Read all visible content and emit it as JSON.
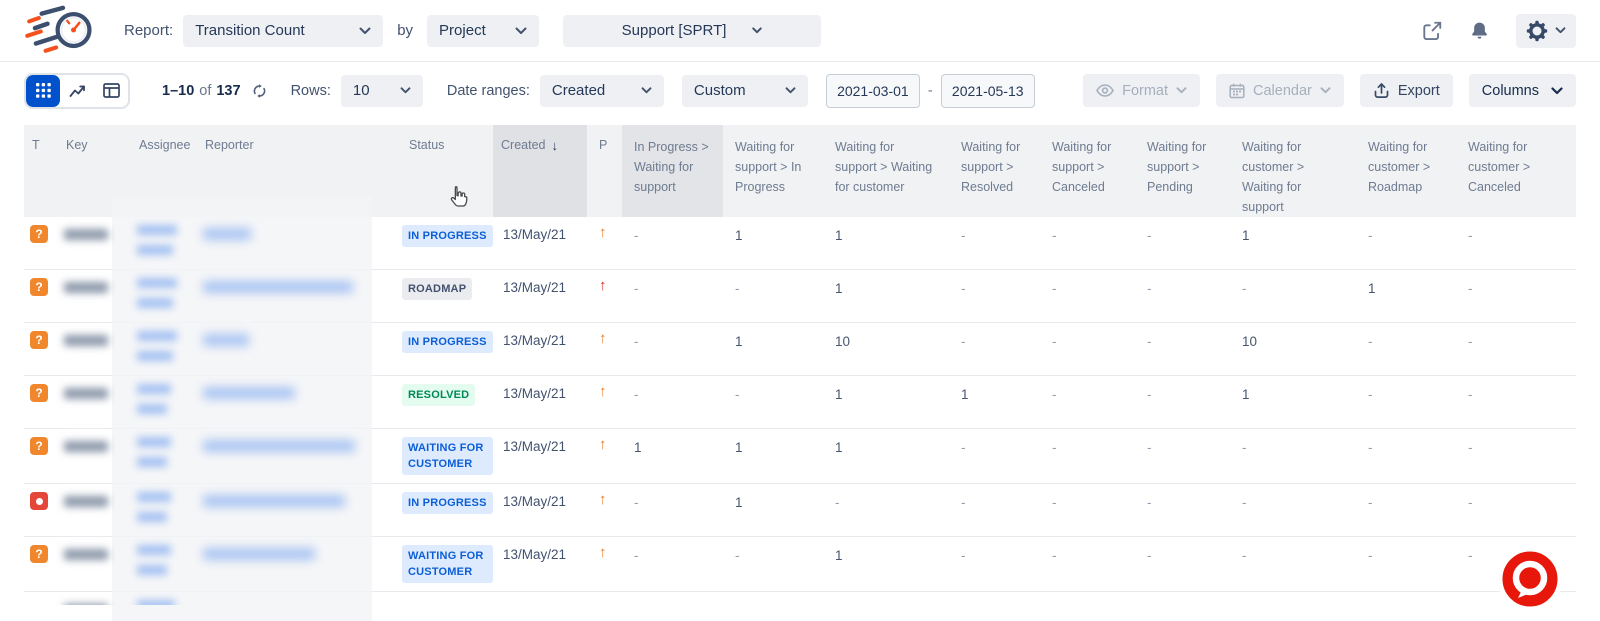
{
  "header": {
    "report_label": "Report:",
    "report_type": "Transition Count",
    "by_label": "by",
    "group_by": "Project",
    "project": "Support [SPRT]"
  },
  "toolbar": {
    "pagination_range": "1–10",
    "pagination_of": "of",
    "pagination_total": "137",
    "rows_label": "Rows:",
    "rows_value": "10",
    "date_ranges_label": "Date ranges:",
    "date_field": "Created",
    "date_mode": "Custom",
    "date_from": "2021-03-01",
    "range_separator": "-",
    "date_to": "2021-05-13",
    "format_label": "Format",
    "calendar_label": "Calendar",
    "export_label": "Export",
    "columns_label": "Columns"
  },
  "icons": {
    "question_glyph": "?",
    "priority_up_glyph": "↑",
    "sort_desc_glyph": "↓"
  },
  "table": {
    "base_columns": [
      "T",
      "Key",
      "Assignee",
      "Reporter",
      "Status",
      "Created",
      "P"
    ],
    "transition_columns": [
      {
        "label": "In Progress > Waiting for support",
        "shaded": true
      },
      {
        "label": "Waiting for support > In Progress"
      },
      {
        "label": "Waiting for support > Waiting for customer"
      },
      {
        "label": "Waiting for support > Resolved"
      },
      {
        "label": "Waiting for support > Canceled"
      },
      {
        "label": "Waiting for support > Pending"
      },
      {
        "label": "Waiting for customer > Waiting for support"
      },
      {
        "label": "Waiting for customer > Roadmap"
      },
      {
        "label": "Waiting for customer > Canceled"
      }
    ],
    "rows": [
      {
        "type": "question",
        "status": "IN PROGRESS",
        "status_variant": "inprogress",
        "created": "13/May/21",
        "priority": "medium",
        "values": [
          "-",
          "1",
          "1",
          "-",
          "-",
          "-",
          "1",
          "-",
          "-"
        ],
        "blur": {
          "key": 44,
          "assignee": [
            40,
            36
          ],
          "reporter": 48
        }
      },
      {
        "type": "question",
        "status": "ROADMAP",
        "status_variant": "neutral",
        "created": "13/May/21",
        "priority": "high",
        "values": [
          "-",
          "-",
          "1",
          "-",
          "-",
          "-",
          "-",
          "1",
          "-"
        ],
        "blur": {
          "key": 44,
          "assignee": [
            40,
            36
          ],
          "reporter": 150
        }
      },
      {
        "type": "question",
        "status": "IN PROGRESS",
        "status_variant": "inprogress",
        "created": "13/May/21",
        "priority": "medium",
        "values": [
          "-",
          "1",
          "10",
          "-",
          "-",
          "-",
          "10",
          "-",
          "-"
        ],
        "blur": {
          "key": 44,
          "assignee": [
            40,
            36
          ],
          "reporter": 46
        }
      },
      {
        "type": "question",
        "status": "RESOLVED",
        "status_variant": "resolved",
        "created": "13/May/21",
        "priority": "medium",
        "values": [
          "-",
          "-",
          "1",
          "1",
          "-",
          "-",
          "1",
          "-",
          "-"
        ],
        "blur": {
          "key": 44,
          "assignee": [
            34,
            30
          ],
          "reporter": 92
        }
      },
      {
        "type": "question",
        "status": "WAITING FOR CUSTOMER",
        "status_variant": "inprogress",
        "created": "13/May/21",
        "priority": "medium",
        "values": [
          "1",
          "1",
          "1",
          "-",
          "-",
          "-",
          "-",
          "-",
          "-"
        ],
        "blur": {
          "key": 44,
          "assignee": [
            34,
            30
          ],
          "reporter": 152
        }
      },
      {
        "type": "bug",
        "status": "IN PROGRESS",
        "status_variant": "inprogress",
        "created": "13/May/21",
        "priority": "medium",
        "values": [
          "-",
          "1",
          "-",
          "-",
          "-",
          "-",
          "-",
          "-",
          "-"
        ],
        "blur": {
          "key": 44,
          "assignee": [
            34,
            30
          ],
          "reporter": 142
        }
      },
      {
        "type": "question",
        "status": "WAITING FOR CUSTOMER",
        "status_variant": "inprogress",
        "created": "13/May/21",
        "priority": "medium",
        "values": [
          "-",
          "-",
          "1",
          "-",
          "-",
          "-",
          "-",
          "-",
          "-"
        ],
        "blur": {
          "key": 44,
          "assignee": [
            34,
            30
          ],
          "reporter": 112
        }
      }
    ]
  }
}
